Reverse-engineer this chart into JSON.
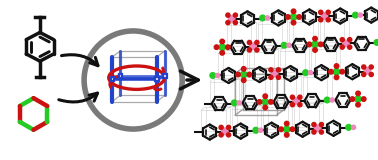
{
  "bg_color": "#ffffff",
  "circle_color": "#7a7a7a",
  "circle_lw": 4.0,
  "arrow_color": "#111111",
  "cube_color": "#bbbbbb",
  "blue_color": "#2244cc",
  "red_color": "#cc1111",
  "green_color": "#22cc22",
  "pink_color": "#ee88bb",
  "dark_color": "#111111",
  "figsize": [
    3.78,
    1.6
  ],
  "dpi": 100
}
